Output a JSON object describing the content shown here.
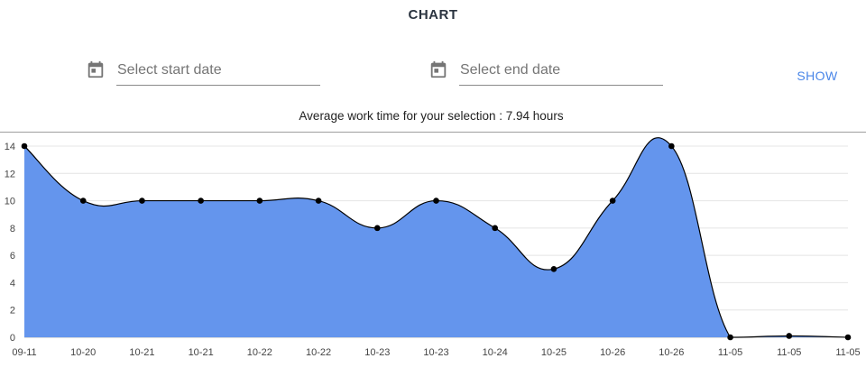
{
  "header": {
    "title": "CHART"
  },
  "filters": {
    "start_placeholder": "Select start date",
    "end_placeholder": "Select end date",
    "show_label": "SHOW",
    "calendar_icon": "calendar-icon"
  },
  "summary": {
    "text": "Average work time for your selection : 7.94 hours"
  },
  "colors": {
    "area_fill": "#6495ed",
    "line": "#000000",
    "accent": "#4a86e8",
    "grid": "#e4e4e4"
  },
  "chart_data": {
    "type": "area",
    "title": "",
    "xlabel": "",
    "ylabel": "",
    "categories": [
      "09-11",
      "10-20",
      "10-21",
      "10-21",
      "10-22",
      "10-22",
      "10-23",
      "10-23",
      "10-24",
      "10-25",
      "10-26",
      "10-26",
      "11-05",
      "11-05",
      "11-05"
    ],
    "values": [
      14,
      10,
      10,
      10,
      10,
      10,
      8,
      10,
      8,
      5,
      10,
      14,
      0,
      0.1,
      0
    ],
    "ylim": [
      0,
      14
    ],
    "yticks": [
      0,
      2,
      4,
      6,
      8,
      10,
      12,
      14
    ],
    "grid": true,
    "smooth": true,
    "markers": true
  }
}
